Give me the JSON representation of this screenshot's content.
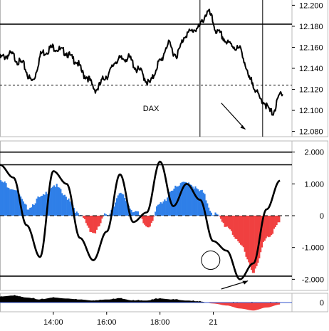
{
  "colors": {
    "price_line": "#000000",
    "positive_fill": "#2f7fe8",
    "negative_fill": "#f04040",
    "osc_line": "#000000",
    "panel_border": "#b8b8b8",
    "grid_line": "#000000"
  },
  "chart_data": [
    {
      "type": "line",
      "panel": "price",
      "annotation": "DAX",
      "ylim": [
        12.075,
        12.205
      ],
      "y_ticks": [
        "12.200",
        "12.180",
        "12.160",
        "12.140",
        "12.120",
        "12.100",
        "12.080"
      ],
      "horizontal_lines": [
        {
          "value": 12.182,
          "style": "solid"
        },
        {
          "value": 12.124,
          "style": "dashed"
        }
      ],
      "vertical_markers_hour": [
        19.5,
        21.85
      ],
      "arrow": "down",
      "x_hours": [
        12.0,
        12.4,
        12.8,
        13.2,
        13.6,
        14.0,
        14.4,
        14.8,
        15.2,
        15.6,
        16.0,
        16.4,
        16.8,
        17.2,
        17.6,
        18.0,
        18.3,
        18.6,
        19.0,
        19.4,
        19.8,
        20.2,
        20.6,
        21.0,
        21.4,
        21.8,
        22.2,
        22.6
      ],
      "y_values": [
        12.152,
        12.155,
        12.147,
        12.13,
        12.157,
        12.162,
        12.158,
        12.15,
        12.135,
        12.122,
        12.135,
        12.15,
        12.152,
        12.14,
        12.128,
        12.148,
        12.165,
        12.155,
        12.175,
        12.18,
        12.195,
        12.175,
        12.165,
        12.16,
        12.13,
        12.112,
        12.1,
        12.12
      ]
    },
    {
      "type": "area",
      "panel": "oscillator",
      "ylim": [
        -2.35,
        2.35
      ],
      "y_ticks": [
        "2.000",
        "1.000",
        "0",
        "-1.000",
        "-2.000"
      ],
      "horizontal_lines": [
        {
          "value": 2.0,
          "style": "solid"
        },
        {
          "value": 1.6,
          "style": "solid"
        },
        {
          "value": 0,
          "style": "dashed"
        },
        {
          "value": -1.9,
          "style": "solid"
        }
      ],
      "x_hours": [
        12.0,
        12.5,
        13.0,
        13.5,
        14.0,
        14.5,
        15.0,
        15.5,
        16.0,
        16.5,
        17.0,
        17.5,
        18.0,
        18.5,
        19.0,
        19.5,
        20.0,
        20.5,
        21.0,
        21.5,
        22.0,
        22.5
      ],
      "histogram": [
        1.1,
        0.9,
        0.3,
        0.6,
        1.0,
        0.6,
        0.0,
        -0.5,
        0.1,
        0.7,
        0.2,
        -0.3,
        0.4,
        0.9,
        1.1,
        0.8,
        0.1,
        -0.3,
        -0.9,
        -1.7,
        -0.6,
        -0.2
      ],
      "series": [
        {
          "values": [
            1.6,
            1.2,
            -0.3,
            -1.3,
            1.4,
            1.0,
            -0.7,
            -1.4,
            -0.5,
            1.3,
            -0.2,
            0.1,
            1.7,
            0.3,
            1.0,
            0.5,
            -0.8,
            -1.1,
            -2.0,
            -1.5,
            0.2,
            1.1
          ]
        }
      ],
      "circle_hour": 19.9,
      "arrow": "up"
    },
    {
      "type": "area",
      "panel": "volume",
      "y_ticks": [
        "0"
      ],
      "x_ticks": [
        "14:00",
        "16:00",
        "18:00",
        "21"
      ],
      "x_tick_hours": [
        14,
        16,
        18,
        20
      ],
      "x_hours": [
        12.0,
        12.5,
        13.0,
        13.5,
        14.0,
        14.5,
        15.0,
        15.5,
        16.0,
        16.5,
        17.0,
        17.5,
        18.0,
        18.5,
        19.0,
        19.5,
        20.0,
        20.5,
        21.0,
        21.5,
        22.0,
        22.5
      ],
      "values": [
        0.6,
        0.7,
        0.5,
        0.3,
        0.5,
        0.4,
        0.3,
        0.2,
        0.3,
        0.4,
        0.2,
        0.2,
        0.4,
        0.3,
        0.2,
        0.1,
        -0.1,
        -0.3,
        -0.6,
        -0.8,
        -0.5,
        -0.2
      ]
    }
  ]
}
